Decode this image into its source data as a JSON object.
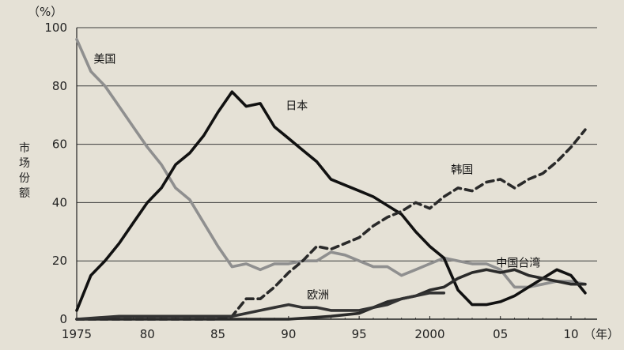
{
  "chart_data": {
    "type": "line",
    "title": "",
    "ylabel": "市场份额",
    "yunit": "（%）",
    "xunit": "（年）",
    "xlim": [
      1975,
      2011
    ],
    "ylim": [
      0,
      100
    ],
    "grid": true,
    "xticks": [
      {
        "value": 1975,
        "label": "1975"
      },
      {
        "value": 1980,
        "label": "80"
      },
      {
        "value": 1985,
        "label": "85"
      },
      {
        "value": 1990,
        "label": "90"
      },
      {
        "value": 1995,
        "label": "95"
      },
      {
        "value": 2000,
        "label": "2000"
      },
      {
        "value": 2005,
        "label": "05"
      },
      {
        "value": 2010,
        "label": "10"
      }
    ],
    "yticks": [
      0,
      20,
      40,
      60,
      80,
      100
    ],
    "series": [
      {
        "name": "美国",
        "color": "#8f8f8f",
        "dash": "solid",
        "label_pos": [
          1976.2,
          88
        ],
        "points": [
          [
            1975,
            96
          ],
          [
            1976,
            85
          ],
          [
            1977,
            80
          ],
          [
            1978,
            73
          ],
          [
            1979,
            66
          ],
          [
            1980,
            59
          ],
          [
            1981,
            53
          ],
          [
            1982,
            45
          ],
          [
            1983,
            41
          ],
          [
            1984,
            33
          ],
          [
            1985,
            25
          ],
          [
            1986,
            18
          ],
          [
            1987,
            19
          ],
          [
            1988,
            17
          ],
          [
            1989,
            19
          ],
          [
            1990,
            19
          ],
          [
            1991,
            20
          ],
          [
            1992,
            20
          ],
          [
            1993,
            23
          ],
          [
            1994,
            22
          ],
          [
            1995,
            20
          ],
          [
            1996,
            18
          ],
          [
            1997,
            18
          ],
          [
            1998,
            15
          ],
          [
            1999,
            17
          ],
          [
            2000,
            19
          ],
          [
            2001,
            21
          ],
          [
            2002,
            20
          ],
          [
            2003,
            19
          ],
          [
            2004,
            19
          ],
          [
            2005,
            17
          ],
          [
            2006,
            11
          ],
          [
            2007,
            11
          ],
          [
            2008,
            12
          ],
          [
            2009,
            13
          ],
          [
            2010,
            13
          ],
          [
            2011,
            12
          ]
        ]
      },
      {
        "name": "日本",
        "color": "#111111",
        "dash": "solid",
        "label_pos": [
          1989.8,
          72
        ],
        "points": [
          [
            1975,
            3
          ],
          [
            1976,
            15
          ],
          [
            1977,
            20
          ],
          [
            1978,
            26
          ],
          [
            1979,
            33
          ],
          [
            1980,
            40
          ],
          [
            1981,
            45
          ],
          [
            1982,
            53
          ],
          [
            1983,
            57
          ],
          [
            1984,
            63
          ],
          [
            1985,
            71
          ],
          [
            1986,
            78
          ],
          [
            1987,
            73
          ],
          [
            1988,
            74
          ],
          [
            1989,
            66
          ],
          [
            1990,
            62
          ],
          [
            1991,
            58
          ],
          [
            1992,
            54
          ],
          [
            1993,
            48
          ],
          [
            1994,
            46
          ],
          [
            1995,
            44
          ],
          [
            1996,
            42
          ],
          [
            1997,
            39
          ],
          [
            1998,
            36
          ],
          [
            1999,
            30
          ],
          [
            2000,
            25
          ],
          [
            2001,
            21
          ],
          [
            2002,
            10
          ],
          [
            2003,
            5
          ],
          [
            2004,
            5
          ],
          [
            2005,
            6
          ],
          [
            2006,
            8
          ],
          [
            2007,
            11
          ],
          [
            2008,
            14
          ],
          [
            2009,
            17
          ],
          [
            2010,
            15
          ],
          [
            2011,
            9
          ]
        ]
      },
      {
        "name": "韩国",
        "color": "#2a2a2a",
        "dash": "dashed",
        "label_pos": [
          2001.5,
          50
        ],
        "points": [
          [
            1975,
            0
          ],
          [
            1976,
            0
          ],
          [
            1977,
            0
          ],
          [
            1978,
            0
          ],
          [
            1979,
            0
          ],
          [
            1980,
            0
          ],
          [
            1981,
            0
          ],
          [
            1982,
            0
          ],
          [
            1983,
            0
          ],
          [
            1984,
            0
          ],
          [
            1985,
            0
          ],
          [
            1986,
            1
          ],
          [
            1987,
            7
          ],
          [
            1988,
            7
          ],
          [
            1989,
            11
          ],
          [
            1990,
            16
          ],
          [
            1991,
            20
          ],
          [
            1992,
            25
          ],
          [
            1993,
            24
          ],
          [
            1994,
            26
          ],
          [
            1995,
            28
          ],
          [
            1996,
            32
          ],
          [
            1997,
            35
          ],
          [
            1998,
            37
          ],
          [
            1999,
            40
          ],
          [
            2000,
            38
          ],
          [
            2001,
            42
          ],
          [
            2002,
            45
          ],
          [
            2003,
            44
          ],
          [
            2004,
            47
          ],
          [
            2005,
            48
          ],
          [
            2006,
            45
          ],
          [
            2007,
            48
          ],
          [
            2008,
            50
          ],
          [
            2009,
            54
          ],
          [
            2010,
            59
          ],
          [
            2011,
            65
          ]
        ]
      },
      {
        "name": "中国台湾",
        "color": "#2a2a2a",
        "dash": "solid",
        "label_pos": [
          2004.7,
          18
        ],
        "points": [
          [
            1975,
            0
          ],
          [
            1980,
            0
          ],
          [
            1985,
            0
          ],
          [
            1990,
            0
          ],
          [
            1993,
            1
          ],
          [
            1995,
            2
          ],
          [
            1996,
            4
          ],
          [
            1997,
            6
          ],
          [
            1998,
            7
          ],
          [
            1999,
            8
          ],
          [
            2000,
            10
          ],
          [
            2001,
            11
          ],
          [
            2002,
            14
          ],
          [
            2003,
            16
          ],
          [
            2004,
            17
          ],
          [
            2005,
            16
          ],
          [
            2006,
            17
          ],
          [
            2007,
            15
          ],
          [
            2008,
            14
          ],
          [
            2009,
            13
          ],
          [
            2010,
            12
          ],
          [
            2011,
            12
          ]
        ]
      },
      {
        "name": "欧洲",
        "color": "#333333",
        "dash": "solid",
        "label_pos": [
          1991.3,
          7
        ],
        "points": [
          [
            1975,
            0
          ],
          [
            1978,
            1
          ],
          [
            1980,
            1
          ],
          [
            1982,
            1
          ],
          [
            1984,
            1
          ],
          [
            1986,
            1
          ],
          [
            1987,
            2
          ],
          [
            1988,
            3
          ],
          [
            1989,
            4
          ],
          [
            1990,
            5
          ],
          [
            1991,
            4
          ],
          [
            1992,
            4
          ],
          [
            1993,
            3
          ],
          [
            1994,
            3
          ],
          [
            1995,
            3
          ],
          [
            1996,
            4
          ],
          [
            1997,
            5
          ],
          [
            1998,
            7
          ],
          [
            1999,
            8
          ],
          [
            2000,
            9
          ],
          [
            2001,
            9
          ]
        ]
      }
    ]
  }
}
